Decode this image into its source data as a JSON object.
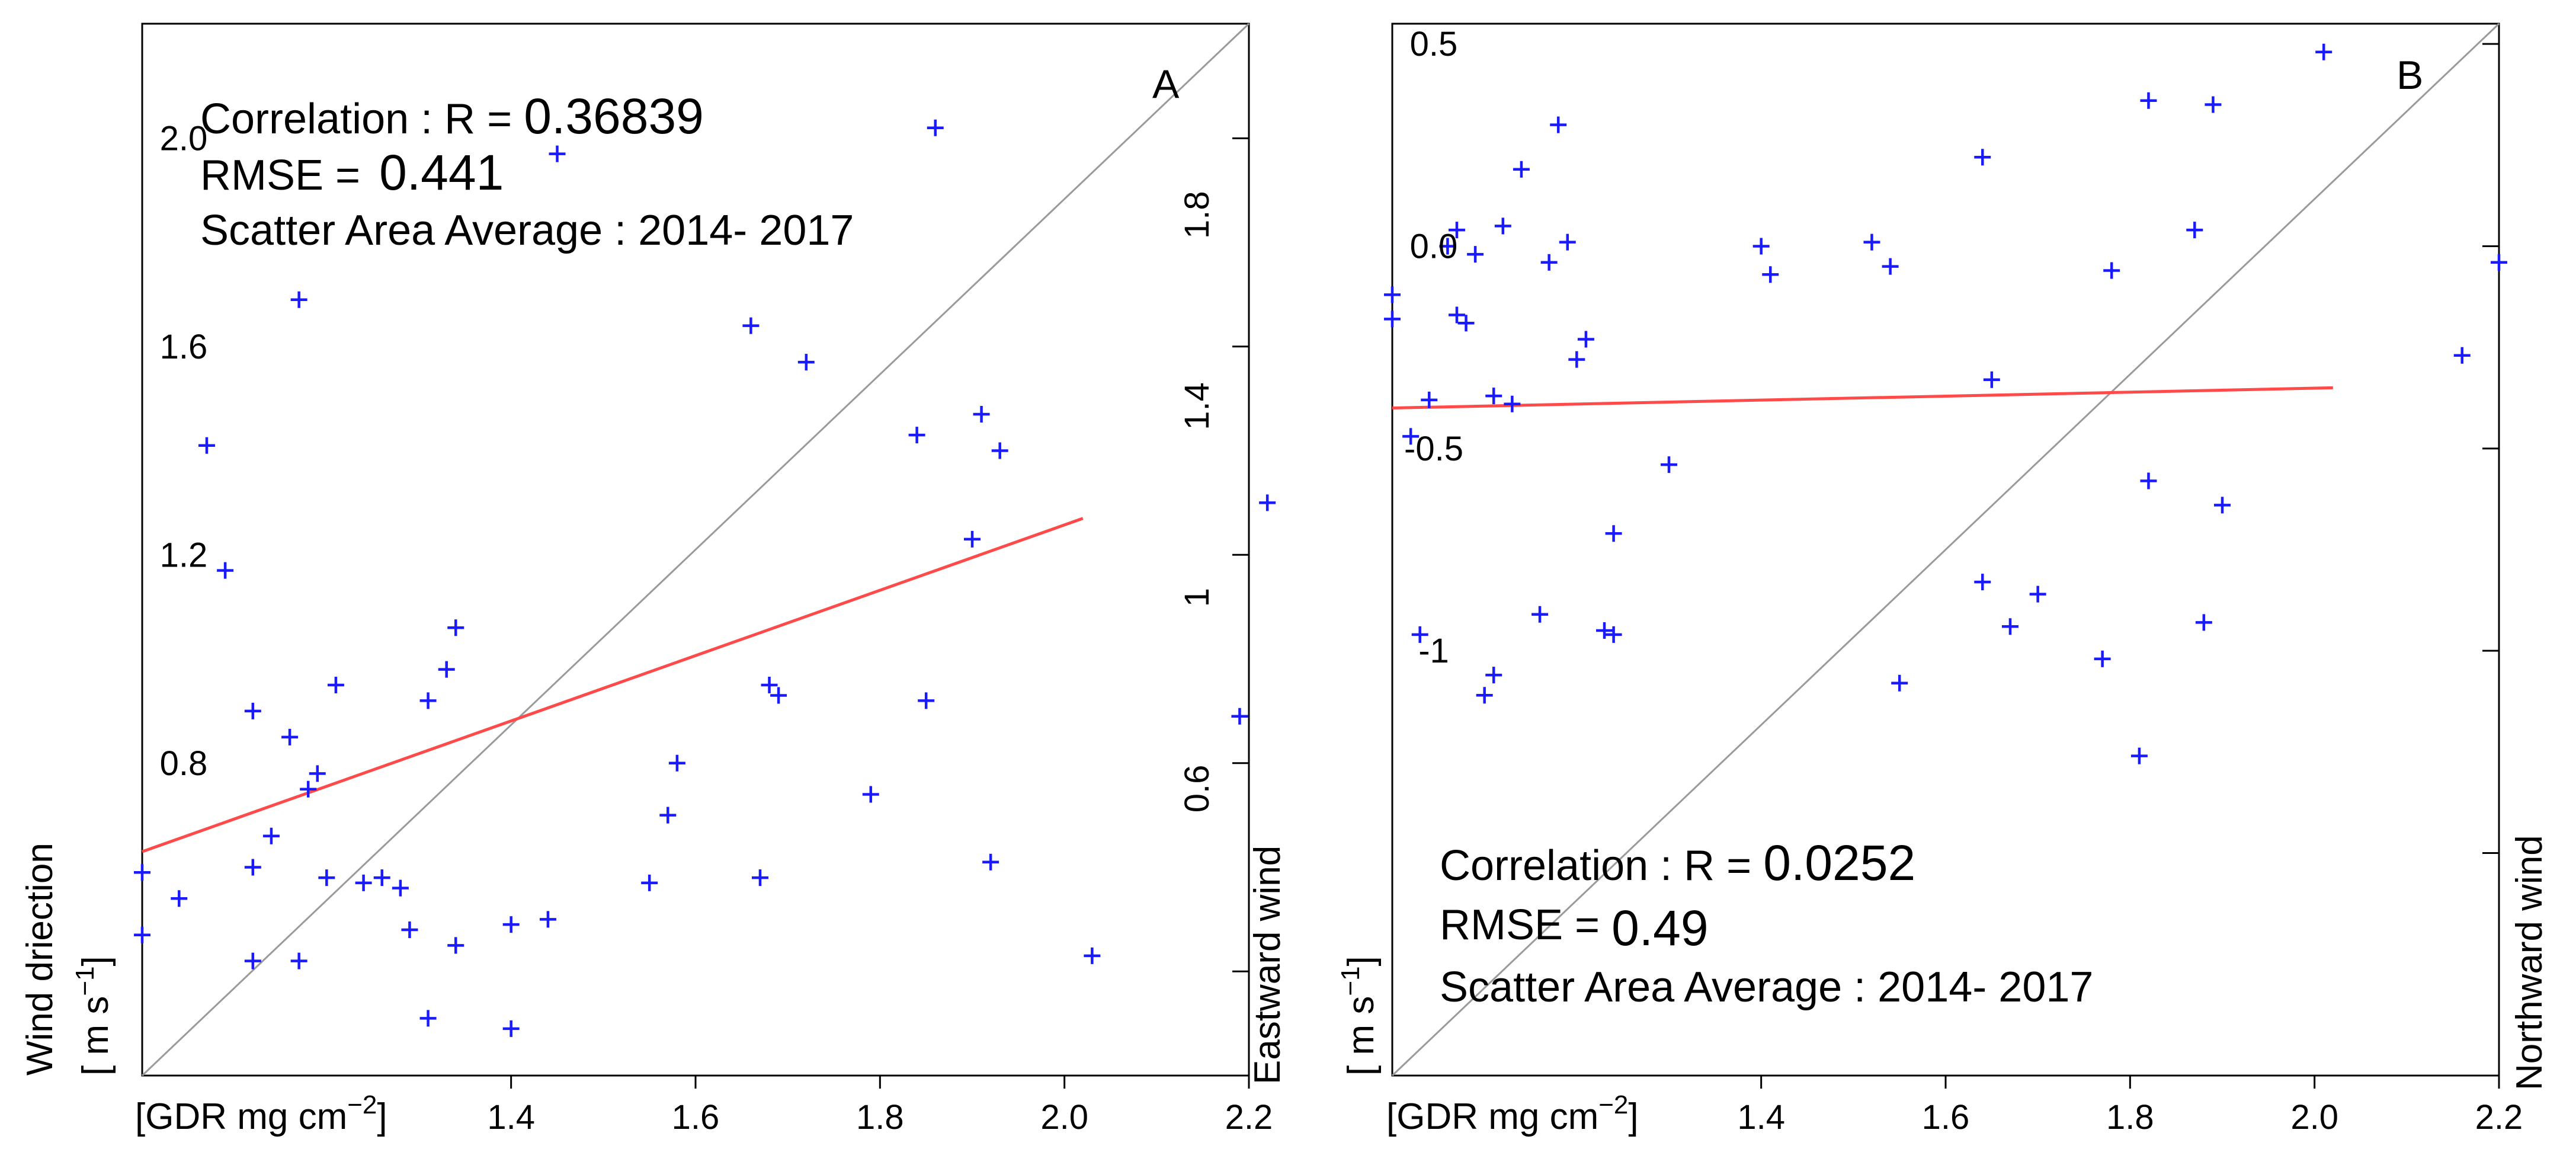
{
  "chart_data": [
    {
      "type": "scatter",
      "panel_label": "A",
      "title": "",
      "xlabel": "[GDR mg cm",
      "xlabel_sup": "−2",
      "xlabel_close": "]",
      "ylabel_line1": "Wind driection",
      "ylabel_line2_a": "[ m s",
      "ylabel_line2_sup": "−1",
      "ylabel_line2_b": "]",
      "right_label": "Eastward wind",
      "xlim": [
        1.0,
        2.2
      ],
      "ylim": [
        0.2,
        2.22
      ],
      "x_ticks": [
        {
          "v": 1.4,
          "label": "1.4"
        },
        {
          "v": 1.6,
          "label": "1.6"
        },
        {
          "v": 1.8,
          "label": "1.8"
        },
        {
          "v": 2.0,
          "label": "2.0"
        },
        {
          "v": 2.2,
          "label": "2.2"
        }
      ],
      "y_ticks": [
        {
          "v": 2.0,
          "label": "2.0"
        },
        {
          "v": 1.6,
          "label": "1.6"
        },
        {
          "v": 1.2,
          "label": "1.2"
        },
        {
          "v": 0.8,
          "label": "0.8"
        },
        {
          "v": 0.4,
          "label": ""
        }
      ],
      "annotations": {
        "correlation_label": "Correlation : R = ",
        "correlation_value": "0.36839",
        "rmse_label": "RMSE = ",
        "rmse_value": "0.441",
        "period": "Scatter Area Average : 2014- 2017"
      },
      "identity_line": [
        [
          1.0,
          0.2
        ],
        [
          2.2,
          2.22
        ]
      ],
      "fit_line": [
        [
          1.0,
          0.63
        ],
        [
          2.02,
          1.27
        ]
      ],
      "points": [
        [
          1.0,
          0.59
        ],
        [
          1.0,
          0.47
        ],
        [
          1.04,
          0.54
        ],
        [
          1.07,
          1.41
        ],
        [
          1.09,
          1.17
        ],
        [
          1.12,
          0.6
        ],
        [
          1.12,
          0.9
        ],
        [
          1.12,
          0.42
        ],
        [
          1.14,
          0.66
        ],
        [
          1.16,
          0.85
        ],
        [
          1.17,
          0.42
        ],
        [
          1.17,
          1.69
        ],
        [
          1.18,
          0.75
        ],
        [
          1.19,
          0.78
        ],
        [
          1.2,
          0.58
        ],
        [
          1.21,
          0.95
        ],
        [
          1.24,
          0.57
        ],
        [
          1.26,
          0.58
        ],
        [
          1.28,
          0.56
        ],
        [
          1.29,
          0.48
        ],
        [
          1.31,
          0.92
        ],
        [
          1.31,
          0.31
        ],
        [
          1.33,
          0.98
        ],
        [
          1.34,
          1.06
        ],
        [
          1.34,
          0.45
        ],
        [
          1.4,
          0.49
        ],
        [
          1.4,
          0.29
        ],
        [
          1.44,
          0.5
        ],
        [
          1.45,
          1.97
        ],
        [
          1.55,
          0.57
        ],
        [
          1.57,
          0.7
        ],
        [
          1.58,
          0.8
        ],
        [
          1.66,
          1.64
        ],
        [
          1.67,
          0.58
        ],
        [
          1.68,
          0.95
        ],
        [
          1.69,
          0.93
        ],
        [
          1.72,
          1.57
        ],
        [
          1.79,
          0.74
        ],
        [
          1.84,
          1.43
        ],
        [
          1.85,
          0.92
        ],
        [
          1.86,
          2.02
        ],
        [
          1.9,
          1.23
        ],
        [
          1.91,
          1.47
        ],
        [
          1.92,
          0.61
        ],
        [
          1.93,
          1.4
        ],
        [
          2.03,
          0.43
        ],
        [
          2.19,
          0.89
        ],
        [
          2.22,
          1.3
        ]
      ]
    },
    {
      "type": "scatter",
      "panel_label": "B",
      "title": "",
      "xlabel": "[GDR mg cm",
      "xlabel_sup": "−2",
      "xlabel_close": "]",
      "ylabel_line1": "",
      "ylabel_line2_a": "[ m s",
      "ylabel_line2_sup": "−1",
      "ylabel_line2_b": "]",
      "right_label": "Northward wind",
      "xlim": [
        1.0,
        2.2
      ],
      "ylim": [
        -2.05,
        0.55
      ],
      "x_ticks": [
        {
          "v": 1.4,
          "label": "1.4"
        },
        {
          "v": 1.6,
          "label": "1.6"
        },
        {
          "v": 1.8,
          "label": "1.8"
        },
        {
          "v": 2.0,
          "label": "2.0"
        },
        {
          "v": 2.2,
          "label": "2.2"
        }
      ],
      "y_ticks": [
        {
          "v": 0.5,
          "label": "0.5"
        },
        {
          "v": 0.0,
          "label": "0.0"
        },
        {
          "v": -0.5,
          "label": "-0.5"
        },
        {
          "v": -1.0,
          "label": "-1"
        },
        {
          "v": -1.5,
          "label": ""
        }
      ],
      "mid_ticks": [
        {
          "v": 1.8,
          "label": "1.8"
        },
        {
          "v": 1.4,
          "label": "1.4"
        },
        {
          "v": 1.0,
          "label": "1"
        },
        {
          "v": 0.6,
          "label": "0.6"
        }
      ],
      "annotations": {
        "correlation_label": "Correlation : R = ",
        "correlation_value": "0.0252",
        "rmse_label": "RMSE = ",
        "rmse_value": "0.49",
        "period": "Scatter Area Average : 2014- 2017"
      },
      "identity_line": [
        [
          1.0,
          -2.05
        ],
        [
          2.2,
          0.55
        ]
      ],
      "fit_line": [
        [
          1.0,
          -0.4
        ],
        [
          2.02,
          -0.35
        ]
      ],
      "points": [
        [
          1.0,
          -0.12
        ],
        [
          1.0,
          -0.18
        ],
        [
          1.02,
          -0.47
        ],
        [
          1.03,
          -0.96
        ],
        [
          1.04,
          -0.38
        ],
        [
          1.06,
          0.0
        ],
        [
          1.07,
          0.04
        ],
        [
          1.07,
          -0.17
        ],
        [
          1.08,
          -0.19
        ],
        [
          1.09,
          -0.02
        ],
        [
          1.1,
          -1.11
        ],
        [
          1.11,
          -1.06
        ],
        [
          1.11,
          -0.37
        ],
        [
          1.12,
          0.05
        ],
        [
          1.13,
          -0.39
        ],
        [
          1.14,
          0.19
        ],
        [
          1.16,
          -0.91
        ],
        [
          1.17,
          -0.04
        ],
        [
          1.18,
          0.3
        ],
        [
          1.19,
          0.01
        ],
        [
          1.2,
          -0.28
        ],
        [
          1.21,
          -0.23
        ],
        [
          1.23,
          -0.95
        ],
        [
          1.24,
          -0.96
        ],
        [
          1.24,
          -0.71
        ],
        [
          1.3,
          -0.54
        ],
        [
          1.4,
          0.0
        ],
        [
          1.41,
          -0.07
        ],
        [
          1.52,
          0.01
        ],
        [
          1.54,
          -0.05
        ],
        [
          1.55,
          -1.08
        ],
        [
          1.64,
          -0.83
        ],
        [
          1.64,
          0.22
        ],
        [
          1.65,
          -0.33
        ],
        [
          1.67,
          -0.94
        ],
        [
          1.7,
          -0.86
        ],
        [
          1.77,
          -1.02
        ],
        [
          1.78,
          -0.06
        ],
        [
          1.81,
          -1.26
        ],
        [
          1.82,
          -0.58
        ],
        [
          1.82,
          0.36
        ],
        [
          1.87,
          0.04
        ],
        [
          1.88,
          -0.93
        ],
        [
          1.89,
          0.35
        ],
        [
          1.9,
          -0.64
        ],
        [
          2.01,
          0.48
        ],
        [
          2.16,
          -0.27
        ],
        [
          2.2,
          -0.04
        ]
      ]
    }
  ]
}
